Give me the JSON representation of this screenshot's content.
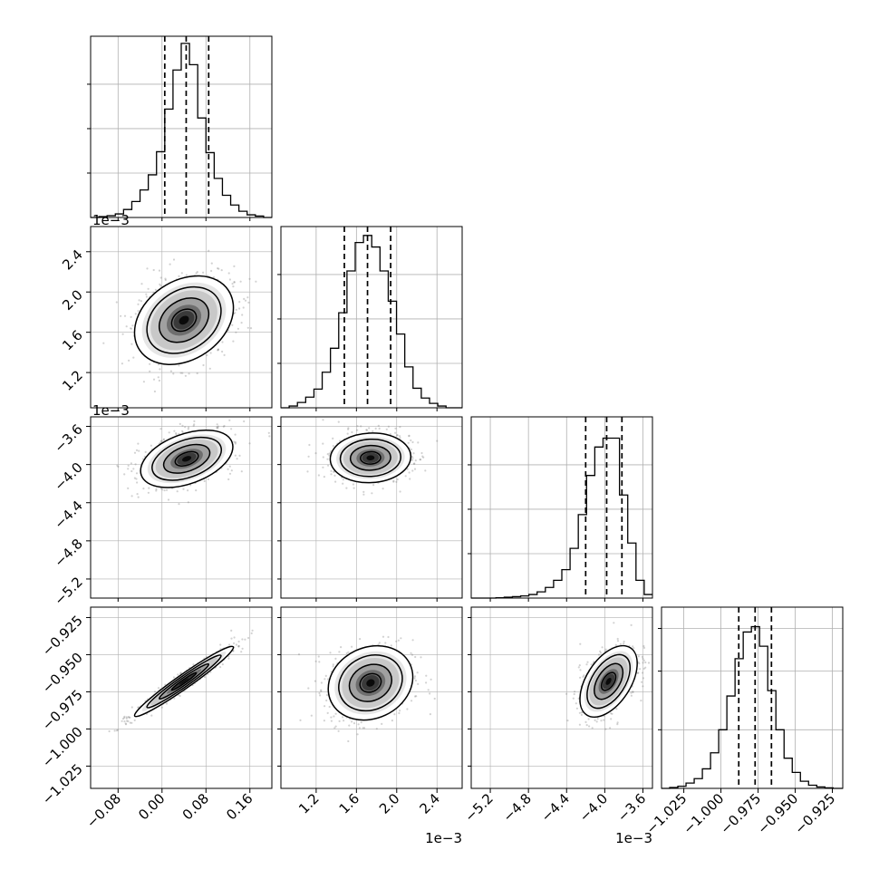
{
  "chart_data": {
    "type": "corner",
    "parameters": [
      {
        "range": [
          -0.13,
          0.2
        ],
        "ticks": [
          -0.08,
          0.0,
          0.08,
          0.16
        ],
        "tick_labels": [
          "−0.08",
          "0.00",
          "0.08",
          "0.16"
        ],
        "offset": ""
      },
      {
        "range": [
          0.85,
          2.65
        ],
        "ticks": [
          1.2,
          1.6,
          2.0,
          2.4
        ],
        "tick_labels": [
          "1.2",
          "1.6",
          "2.0",
          "2.4"
        ],
        "offset": "1e−3"
      },
      {
        "range": [
          -5.4,
          -3.5
        ],
        "ticks": [
          -5.2,
          -4.8,
          -4.4,
          -4.0,
          -3.6
        ],
        "tick_labels": [
          "−5.2",
          "−4.8",
          "−4.4",
          "−4.0",
          "−3.6"
        ],
        "offset": "1e−3"
      },
      {
        "range": [
          -1.04,
          -0.918
        ],
        "ticks": [
          -1.025,
          -1.0,
          -0.975,
          -0.95,
          -0.925
        ],
        "tick_labels": [
          "−1.025",
          "−1.000",
          "−0.975",
          "−0.950",
          "−0.925"
        ],
        "offset": ""
      }
    ],
    "histograms": [
      {
        "param": 0,
        "bins": [
          -0.13,
          -0.115,
          -0.1,
          -0.085,
          -0.07,
          -0.055,
          -0.04,
          -0.025,
          -0.01,
          0.005,
          0.02,
          0.035,
          0.05,
          0.065,
          0.08,
          0.095,
          0.11,
          0.125,
          0.14,
          0.155,
          0.17,
          0.185,
          0.2
        ],
        "counts": [
          0.0,
          0.005,
          0.01,
          0.02,
          0.045,
          0.09,
          0.155,
          0.24,
          0.37,
          0.61,
          0.83,
          0.98,
          0.86,
          0.56,
          0.365,
          0.22,
          0.125,
          0.07,
          0.035,
          0.015,
          0.008,
          0.0
        ],
        "quantiles": [
          0.005,
          0.044,
          0.085
        ],
        "grid": [
          0.25,
          0.5,
          0.75
        ]
      },
      {
        "param": 1,
        "bins": [
          0.85,
          0.932,
          1.014,
          1.096,
          1.178,
          1.26,
          1.342,
          1.424,
          1.506,
          1.588,
          1.67,
          1.752,
          1.834,
          1.916,
          1.998,
          2.08,
          2.162,
          2.244,
          2.326,
          2.408,
          2.49,
          2.572,
          2.65
        ],
        "counts": [
          0.0,
          0.01,
          0.03,
          0.06,
          0.105,
          0.2,
          0.335,
          0.535,
          0.77,
          0.93,
          0.97,
          0.905,
          0.77,
          0.6,
          0.415,
          0.23,
          0.11,
          0.055,
          0.025,
          0.01,
          0.0,
          0.0
        ],
        "quantiles": [
          1.48,
          1.71,
          1.94
        ],
        "grid": [
          0.25,
          0.5,
          0.75
        ]
      },
      {
        "param": 2,
        "bins": [
          -5.4,
          -5.3136,
          -5.2273,
          -5.1409,
          -5.0545,
          -4.9682,
          -4.8818,
          -4.7955,
          -4.7091,
          -4.6227,
          -4.5364,
          -4.45,
          -4.3636,
          -4.2773,
          -4.1909,
          -4.1045,
          -4.0182,
          -3.9318,
          -3.8455,
          -3.7591,
          -3.6727,
          -3.5864,
          -3.5
        ],
        "counts": [
          0.0,
          0.0,
          0.0,
          0.002,
          0.005,
          0.008,
          0.012,
          0.02,
          0.035,
          0.06,
          0.1,
          0.16,
          0.28,
          0.47,
          0.69,
          0.85,
          0.9,
          0.9,
          0.58,
          0.31,
          0.1,
          0.02
        ],
        "quantiles": [
          -4.2,
          -3.98,
          -3.82
        ],
        "grid": [
          0.25,
          0.5,
          0.75
        ]
      },
      {
        "param": 3,
        "bins": [
          -1.04,
          -1.0345,
          -1.029,
          -1.0235,
          -1.018,
          -1.0125,
          -1.007,
          -1.0015,
          -0.996,
          -0.9905,
          -0.985,
          -0.9795,
          -0.974,
          -0.9685,
          -0.963,
          -0.9575,
          -0.952,
          -0.9465,
          -0.941,
          -0.9355,
          -0.93,
          -0.9245,
          -0.918
        ],
        "counts": [
          0.0,
          0.005,
          0.012,
          0.03,
          0.055,
          0.11,
          0.2,
          0.33,
          0.52,
          0.73,
          0.88,
          0.91,
          0.8,
          0.55,
          0.33,
          0.17,
          0.09,
          0.04,
          0.018,
          0.008,
          0.003,
          0.0
        ],
        "quantiles": [
          -0.988,
          -0.977,
          -0.966
        ],
        "grid": [
          0.33,
          0.66,
          0.9
        ]
      }
    ],
    "pairs": [
      {
        "x": 0,
        "y": 1,
        "mean": [
          0.04,
          1.72
        ],
        "sd": [
          0.045,
          0.22
        ],
        "rho": 0.28
      },
      {
        "x": 0,
        "y": 2,
        "mean": [
          0.045,
          -3.94
        ],
        "sd": [
          0.042,
          0.15
        ],
        "rho": 0.42
      },
      {
        "x": 1,
        "y": 2,
        "mean": [
          1.74,
          -3.93
        ],
        "sd": [
          0.2,
          0.13
        ],
        "rho": 0.05
      },
      {
        "x": 0,
        "y": 3,
        "mean": [
          0.04,
          -0.968
        ],
        "sd": [
          0.045,
          0.0118
        ],
        "rho": 0.97
      },
      {
        "x": 1,
        "y": 3,
        "mean": [
          1.74,
          -0.969
        ],
        "sd": [
          0.21,
          0.0125
        ],
        "rho": 0.16
      },
      {
        "x": 2,
        "y": 3,
        "mean": [
          -3.96,
          -0.968
        ],
        "sd": [
          0.15,
          0.012
        ],
        "rho": 0.5
      }
    ],
    "contour_levels_sigma": [
      0.5,
      1.0,
      1.5,
      2.0
    ],
    "line_color": "#000000",
    "grid_color": "#b0b0b0",
    "scatter_color": "#7f7f7f"
  }
}
